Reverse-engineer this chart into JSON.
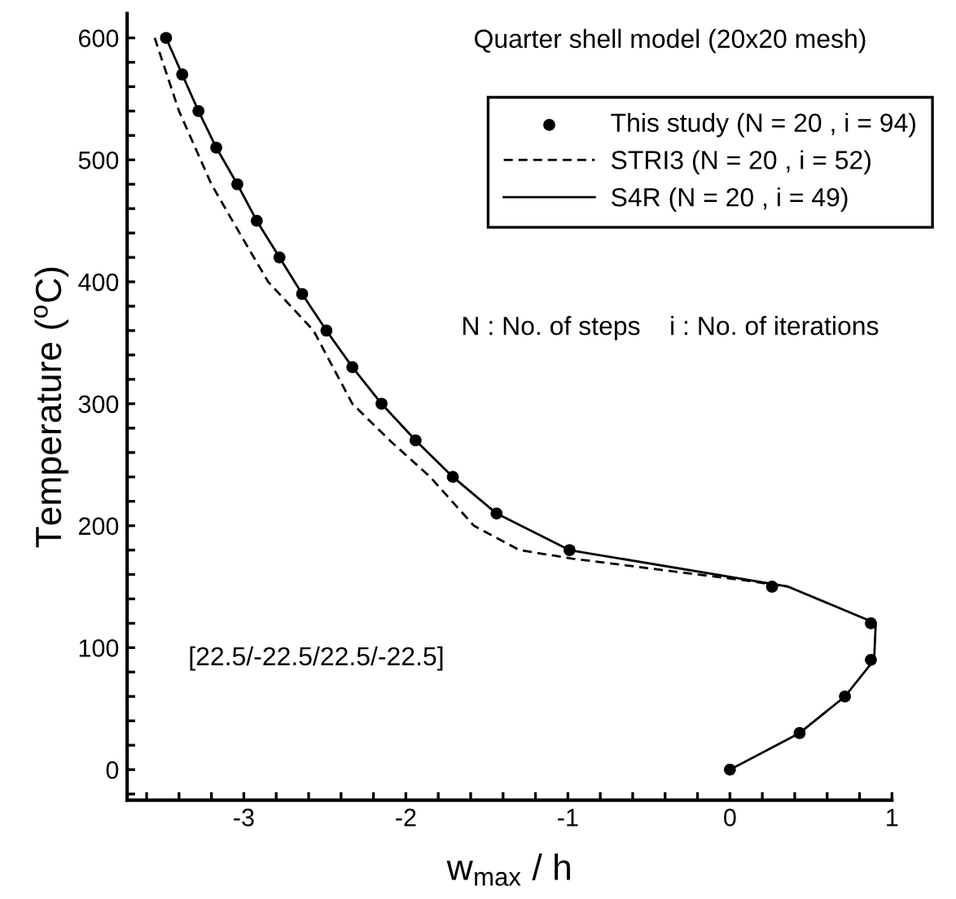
{
  "chart_data": {
    "type": "line",
    "xlabel": "w$_{max}$ / h",
    "ylabel": "Temperature ($^{o}$C)",
    "xlim": [
      -3.72,
      1.0
    ],
    "ylim": [
      -25,
      620
    ],
    "xticks": [
      -3,
      -2,
      -1,
      0,
      1,
      {
        "value": -3.6,
        "label": null
      },
      {
        "value": -3.4,
        "label": null
      },
      {
        "value": -3.2,
        "label": null
      },
      {
        "value": -2.8,
        "label": null
      },
      {
        "value": -2.6,
        "label": null
      },
      {
        "value": -2.4,
        "label": null
      },
      {
        "value": -2.2,
        "label": null
      },
      {
        "value": -1.8,
        "label": null
      },
      {
        "value": -1.6,
        "label": null
      },
      {
        "value": -1.4,
        "label": null
      },
      {
        "value": -1.2,
        "label": null
      },
      {
        "value": -0.8,
        "label": null
      },
      {
        "value": -0.6,
        "label": null
      },
      {
        "value": -0.4,
        "label": null
      },
      {
        "value": -0.2,
        "label": null
      },
      {
        "value": 0.2,
        "label": null
      },
      {
        "value": 0.4,
        "label": null
      },
      {
        "value": 0.6,
        "label": null
      },
      {
        "value": 0.8,
        "label": null
      }
    ],
    "yticks": [
      0,
      100,
      200,
      300,
      400,
      500,
      600,
      {
        "value": -20,
        "label": null
      },
      {
        "value": 20,
        "label": null
      },
      {
        "value": 40,
        "label": null
      },
      {
        "value": 60,
        "label": null
      },
      {
        "value": 80,
        "label": null
      },
      {
        "value": 120,
        "label": null
      },
      {
        "value": 140,
        "label": null
      },
      {
        "value": 160,
        "label": null
      },
      {
        "value": 180,
        "label": null
      },
      {
        "value": 220,
        "label": null
      },
      {
        "value": 240,
        "label": null
      },
      {
        "value": 260,
        "label": null
      },
      {
        "value": 280,
        "label": null
      },
      {
        "value": 320,
        "label": null
      },
      {
        "value": 340,
        "label": null
      },
      {
        "value": 360,
        "label": null
      },
      {
        "value": 380,
        "label": null
      },
      {
        "value": 420,
        "label": null
      },
      {
        "value": 440,
        "label": null
      },
      {
        "value": 460,
        "label": null
      },
      {
        "value": 480,
        "label": null
      },
      {
        "value": 520,
        "label": null
      },
      {
        "value": 540,
        "label": null
      },
      {
        "value": 560,
        "label": null
      },
      {
        "value": 580,
        "label": null
      }
    ],
    "grid": false,
    "legend": "top right",
    "series": [
      {
        "name": "This study (N = 20 , i = 94)",
        "type": "scatter",
        "marker": "circle",
        "color": "#000000",
        "x": [
          0,
          0.43,
          0.71,
          0.87,
          0.87,
          0.26,
          -0.99,
          -1.44,
          -1.71,
          -1.94,
          -2.15,
          -2.33,
          -2.49,
          -2.64,
          -2.78,
          -2.92,
          -3.04,
          -3.17,
          -3.28,
          -3.38,
          -3.48
        ],
        "values": [
          0,
          30,
          60,
          90,
          120,
          150,
          180,
          210,
          240,
          270,
          300,
          330,
          360,
          390,
          420,
          450,
          480,
          510,
          540,
          570,
          600
        ]
      },
      {
        "name": "STRI3 (N = 20 , i = 52)",
        "line_style": "dashed",
        "marker": "none",
        "color": "#000000",
        "x": [
          -3.55,
          -3.4,
          -3.2,
          -3.07,
          -2.85,
          -2.57,
          -2.33,
          -2.1,
          -1.85,
          -1.58,
          -1.3,
          -0.97,
          0.1,
          0.36
        ],
        "values": [
          600,
          540,
          480,
          450,
          400,
          360,
          300,
          270,
          240,
          200,
          180,
          173,
          155,
          150
        ]
      },
      {
        "name": "S4R (N = 20 , i = 49)",
        "line_style": "solid",
        "marker": "none",
        "color": "#000000",
        "x": [
          0,
          0.43,
          0.71,
          0.89,
          0.9,
          0.36,
          -0.99,
          -1.44,
          -1.71,
          -1.94,
          -2.15,
          -2.33,
          -2.49,
          -2.64,
          -2.78,
          -2.92,
          -3.04,
          -3.17,
          -3.28,
          -3.38,
          -3.48
        ],
        "values": [
          0,
          30,
          60,
          90,
          120,
          150,
          180,
          210,
          240,
          270,
          300,
          330,
          360,
          390,
          420,
          450,
          480,
          510,
          540,
          570,
          600
        ]
      }
    ],
    "annotations": [
      "Quarter shell model (20x20 mesh)",
      "N : No. of steps    i : No. of iterations",
      "[22.5/-22.5/22.5/-22.5]"
    ]
  }
}
